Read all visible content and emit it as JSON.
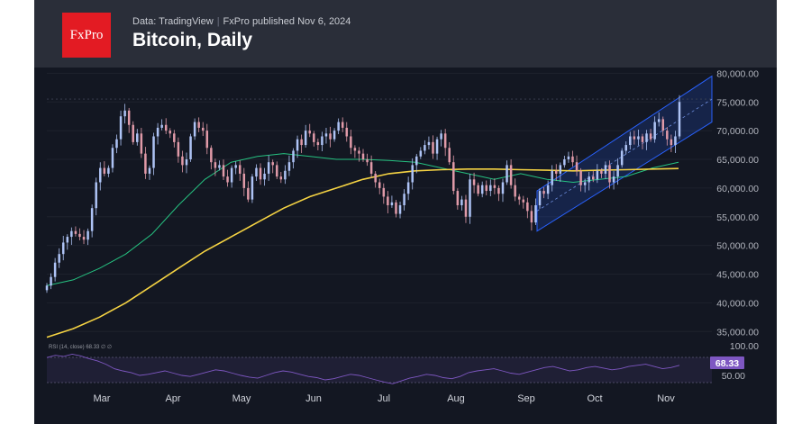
{
  "header": {
    "brand": "FxPro",
    "source": "Data: TradingView",
    "published": "FxPro published Nov 6, 2024",
    "title": "Bitcoin, Daily"
  },
  "colors": {
    "background": "#131722",
    "header": "#2a2e39",
    "brand": "#e31b23",
    "candle_up": "#aec3f5",
    "candle_down": "#e09aa8",
    "ma_fast": "#26c281",
    "ma_slow": "#f5d343",
    "channel": "#2962ff",
    "rsi": "#7e57c2"
  },
  "chart_data": {
    "type": "candlestick",
    "title": "Bitcoin, Daily",
    "y_ticks": [
      "80,000.00",
      "75,000.00",
      "70,000.00",
      "65,000.00",
      "60,000.00",
      "55,000.00",
      "50,000.00",
      "45,000.00",
      "40,000.00",
      "35,000.00"
    ],
    "ylim": [
      33000,
      81000
    ],
    "x_ticks": [
      "Mar",
      "Apr",
      "May",
      "Jun",
      "Jul",
      "Aug",
      "Sep",
      "Oct",
      "Nov"
    ],
    "close_series": [
      43000,
      44500,
      47000,
      48500,
      50500,
      51500,
      52500,
      52000,
      51500,
      51000,
      52500,
      56500,
      61000,
      63500,
      62500,
      63500,
      67000,
      68500,
      72500,
      73500,
      71000,
      68000,
      69500,
      66000,
      62500,
      63500,
      69000,
      70500,
      71000,
      70000,
      69500,
      68000,
      65500,
      64000,
      65000,
      69000,
      71500,
      70500,
      70000,
      67000,
      64500,
      63500,
      64000,
      62000,
      61000,
      63500,
      64000,
      62500,
      60000,
      58000,
      62000,
      63500,
      61500,
      62500,
      64500,
      64000,
      62000,
      61500,
      63000,
      64500,
      66500,
      68500,
      67500,
      70000,
      69500,
      68000,
      67500,
      69000,
      69500,
      68500,
      70000,
      71500,
      70500,
      69000,
      67000,
      66500,
      66000,
      65000,
      64500,
      62500,
      61000,
      60000,
      58500,
      57000,
      57500,
      55500,
      57000,
      59000,
      61000,
      64000,
      65500,
      66500,
      67500,
      68000,
      66000,
      68500,
      69500,
      67000,
      64500,
      59500,
      57000,
      58000,
      55000,
      61500,
      60500,
      59000,
      60500,
      59500,
      60500,
      60000,
      59000,
      61000,
      64000,
      60500,
      58500,
      58000,
      57500,
      56000,
      54000,
      57000,
      59500,
      59000,
      60500,
      63000,
      62500,
      64000,
      65000,
      65500,
      64500,
      63000,
      60500,
      61000,
      62000,
      61500,
      63000,
      62500,
      64000,
      61000,
      62000,
      64000,
      66500,
      67500,
      69000,
      68500,
      69000,
      68000,
      69500,
      68500,
      71500,
      72000,
      70000,
      68500,
      67500,
      69000,
      75000
    ],
    "series": [
      {
        "name": "MA fast",
        "values": [
          43000,
          44000,
          46000,
          48500,
          52000,
          57000,
          61500,
          64500,
          65500,
          66000,
          65500,
          65000,
          65000,
          64800,
          64500,
          63500,
          62500,
          61500,
          62500,
          61500,
          61000,
          61500,
          62000,
          63500,
          64500
        ]
      },
      {
        "name": "MA slow",
        "values": [
          34000,
          35500,
          37500,
          40000,
          43000,
          46000,
          49000,
          51500,
          54000,
          56500,
          58500,
          60000,
          61500,
          62500,
          63000,
          63200,
          63300,
          63300,
          63200,
          63100,
          63000,
          63100,
          63200,
          63300,
          63400
        ]
      }
    ],
    "channel": {
      "start_low": 52500,
      "start_high": 59500,
      "end_low": 71500,
      "end_high": 79500
    },
    "rsi": {
      "legend": "RSI (14, close) 68.33 ∅ ∅",
      "ticks": [
        "100.00",
        "50.00"
      ],
      "last_value": "68.33",
      "values": [
        82,
        86,
        84,
        88,
        85,
        80,
        76,
        70,
        62,
        58,
        55,
        50,
        52,
        55,
        58,
        54,
        50,
        48,
        52,
        56,
        60,
        58,
        54,
        50,
        47,
        45,
        50,
        55,
        58,
        56,
        52,
        48,
        46,
        42,
        44,
        48,
        52,
        50,
        46,
        42,
        38,
        35,
        40,
        45,
        48,
        52,
        50,
        46,
        44,
        48,
        55,
        58,
        60,
        62,
        58,
        54,
        52,
        56,
        60,
        64,
        66,
        62,
        58,
        60,
        64,
        66,
        63,
        60,
        62,
        66,
        68,
        70,
        66,
        62,
        64,
        68
      ]
    }
  }
}
